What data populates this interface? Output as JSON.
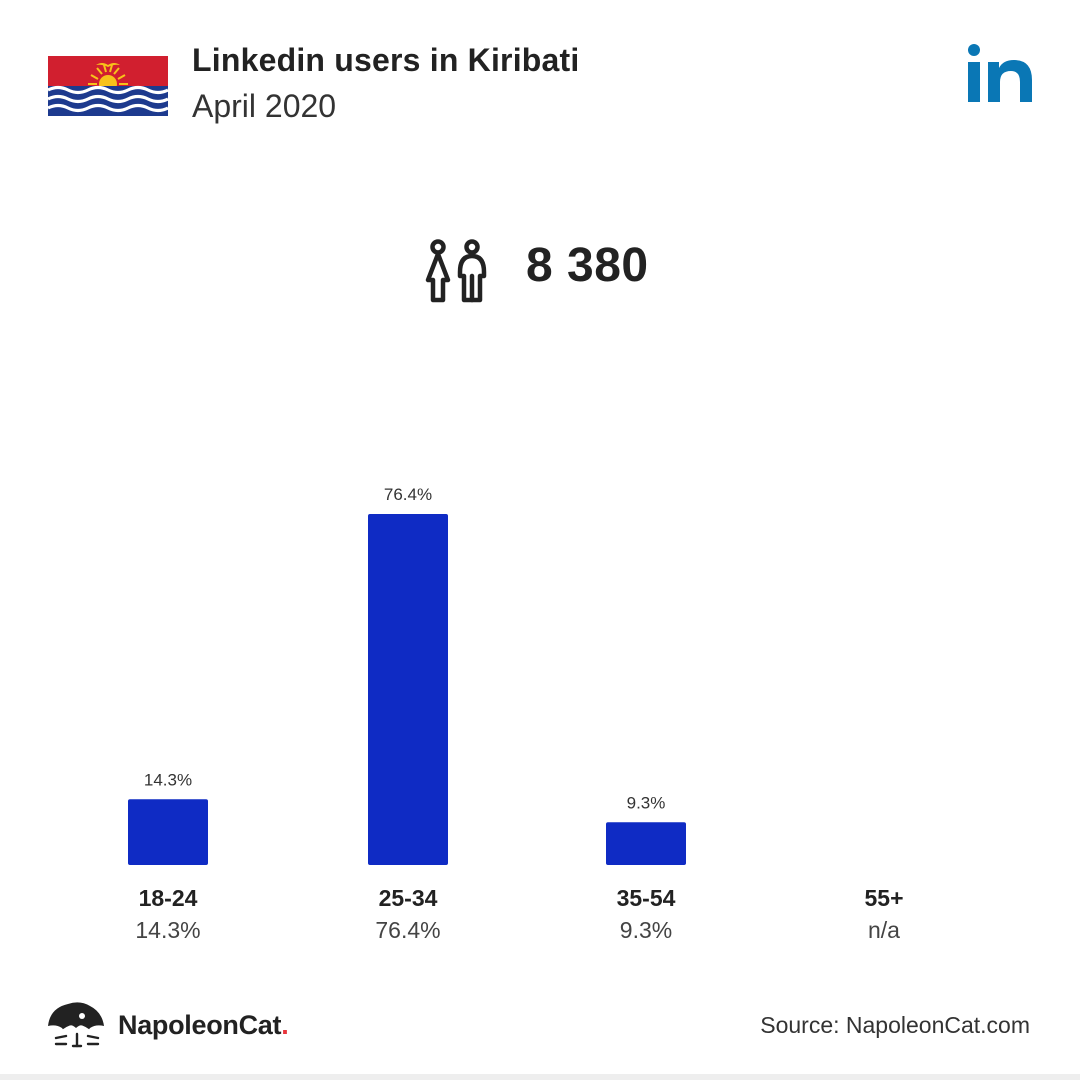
{
  "header": {
    "title": "Linkedin users in Kiribati",
    "subtitle": "April 2020"
  },
  "summary": {
    "total_users": "8 380"
  },
  "colors": {
    "bar": "#0f2bc4",
    "linkedin_blue": "#0a77b5",
    "text_dark": "#222222",
    "text_mid": "#333333",
    "flag_red": "#d11f2f",
    "flag_blue": "#1d3a8e",
    "flag_sun": "#f7c21a",
    "brand_dot": "#e8343b"
  },
  "icons": {
    "flag": "kiribati-flag-icon",
    "platform": "linkedin-icon",
    "users": "users-icon",
    "brand": "napoleoncat-icon"
  },
  "chart_data": {
    "type": "bar",
    "categories": [
      "18-24",
      "25-34",
      "35-54",
      "55+"
    ],
    "values": [
      14.3,
      76.4,
      9.3,
      null
    ],
    "value_labels": [
      "14.3%",
      "76.4%",
      "9.3%",
      ""
    ],
    "category_values": [
      "14.3%",
      "76.4%",
      "9.3%",
      "n/a"
    ],
    "ylim": [
      0,
      76.4
    ],
    "grid": false,
    "title": "",
    "xlabel": "",
    "ylabel": ""
  },
  "footer": {
    "brand": "NapoleonCat",
    "brand_dot": ".",
    "source": "Source: NapoleonCat.com"
  }
}
